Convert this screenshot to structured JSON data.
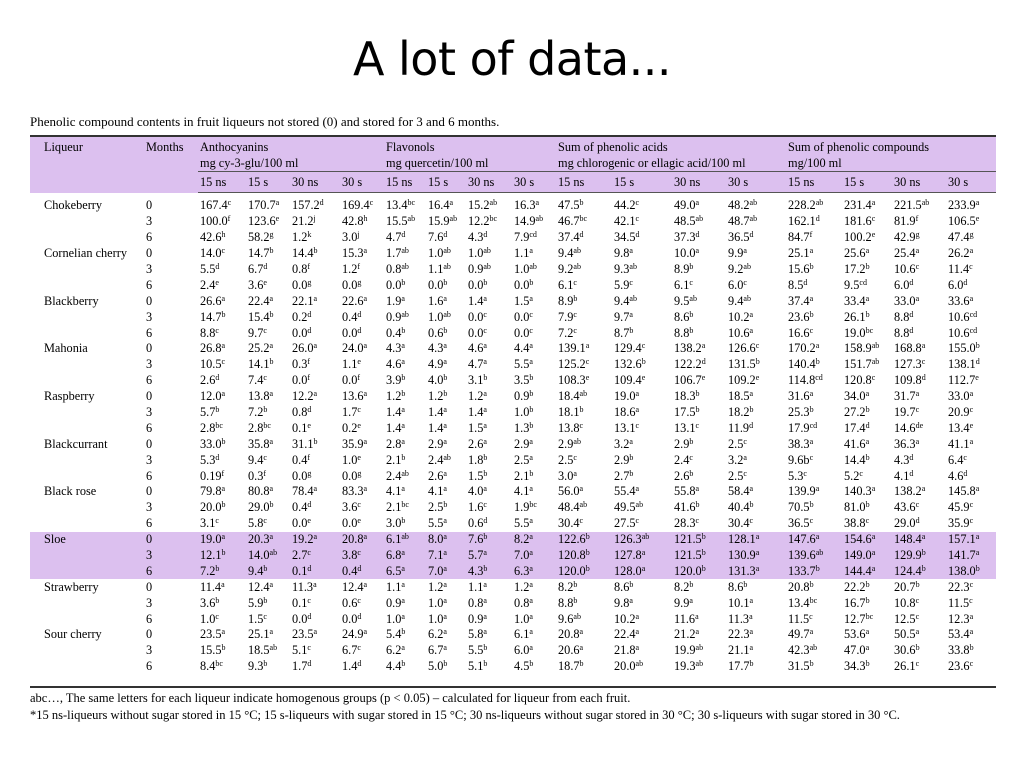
{
  "title": "A lot of data...",
  "caption": "Phenolic compound contents in fruit liqueurs not stored (0) and stored for 3 and 6 months.",
  "headers": {
    "liqueur": "Liqueur",
    "months": "Months",
    "anthocyanins": "Anthocyanins",
    "anthocyanins_unit": "mg cy-3-glu/100 ml",
    "flavonols": "Flavonols",
    "flavonols_unit": "mg quercetin/100 ml",
    "acids": "Sum of phenolic acids",
    "acids_unit": "mg chlorogenic or ellagic acid/100 ml",
    "compounds": "Sum of phenolic compounds",
    "compounds_unit": "mg/100 ml",
    "sub": [
      "15 ns",
      "15 s",
      "30 ns",
      "30 s"
    ]
  },
  "rows": [
    {
      "liqueur": "Chokeberry",
      "highlight": false,
      "data": [
        [
          "0",
          [
            "167.4|c",
            "170.7|a",
            "157.2|d",
            "169.4|c"
          ],
          [
            "13.4|bc",
            "16.4|a",
            "15.2|ab",
            "16.3|a"
          ],
          [
            "47.5|b",
            "44.2|c",
            "49.0|a",
            "48.2|ab"
          ],
          [
            "228.2|ab",
            "231.4|a",
            "221.5|ab",
            "233.9|a"
          ]
        ],
        [
          "3",
          [
            "100.0|f",
            "123.6|e",
            "21.2|j",
            "42.8|h"
          ],
          [
            "15.5|ab",
            "15.9|ab",
            "12.2|bc",
            "14.9|ab"
          ],
          [
            "46.7|bc",
            "42.1|c",
            "48.5|ab",
            "48.7|ab"
          ],
          [
            "162.1|d",
            "181.6|c",
            "81.9|f",
            "106.5|e"
          ]
        ],
        [
          "6",
          [
            "42.6|h",
            "58.2|g",
            "1.2|k",
            "3.0|j"
          ],
          [
            "4.7|d",
            "7.6|d",
            "4.3|d",
            "7.9|cd"
          ],
          [
            "37.4|d",
            "34.5|d",
            "37.3|d",
            "36.5|d"
          ],
          [
            "84.7|f",
            "100.2|e",
            "42.9|g",
            "47.4|g"
          ]
        ]
      ]
    },
    {
      "liqueur": "Cornelian cherry",
      "highlight": false,
      "data": [
        [
          "0",
          [
            "14.0|c",
            "14.7|b",
            "14.4|b",
            "15.3|a"
          ],
          [
            "1.7|ab",
            "1.0|ab",
            "1.0|ab",
            "1.1|a"
          ],
          [
            "9.4|ab",
            "9.8|a",
            "10.0|a",
            "9.9|a"
          ],
          [
            "25.1|a",
            "25.6|a",
            "25.4|a",
            "26.2|a"
          ]
        ],
        [
          "3",
          [
            "5.5|d",
            "6.7|d",
            "0.8|f",
            "1.2|f"
          ],
          [
            "0.8|ab",
            "1.1|ab",
            "0.9|ab",
            "1.0|ab"
          ],
          [
            "9.2|ab",
            "9.3|ab",
            "8.9|b",
            "9.2|ab"
          ],
          [
            "15.6|b",
            "17.2|b",
            "10.6|c",
            "11.4|c"
          ]
        ],
        [
          "6",
          [
            "2.4|e",
            "3.6|e",
            "0.0|g",
            "0.0|g"
          ],
          [
            "0.0|b",
            "0.0|b",
            "0.0|b",
            "0.0|b"
          ],
          [
            "6.1|c",
            "5.9|c",
            "6.1|c",
            "6.0|c"
          ],
          [
            "8.5|d",
            "9.5|cd",
            "6.0|d",
            "6.0|d"
          ]
        ]
      ]
    },
    {
      "liqueur": "Blackberry",
      "highlight": false,
      "data": [
        [
          "0",
          [
            "26.6|a",
            "22.4|a",
            "22.1|a",
            "22.6|a"
          ],
          [
            "1.9|a",
            "1.6|a",
            "1.4|a",
            "1.5|a"
          ],
          [
            "8.9|b",
            "9.4|ab",
            "9.5|ab",
            "9.4|ab"
          ],
          [
            "37.4|a",
            "33.4|a",
            "33.0|a",
            "33.6|a"
          ]
        ],
        [
          "3",
          [
            "14.7|b",
            "15.4|b",
            "0.2|d",
            "0.4|d"
          ],
          [
            "0.9|ab",
            "1.0|ab",
            "0.0|c",
            "0.0|c"
          ],
          [
            "7.9|c",
            "9.7|a",
            "8.6|b",
            "10.2|a"
          ],
          [
            "23.6|b",
            "26.1|b",
            "8.8|d",
            "10.6|cd"
          ]
        ],
        [
          "6",
          [
            "8.8|c",
            "9.7|c",
            "0.0|d",
            "0.0|d"
          ],
          [
            "0.4|b",
            "0.6|b",
            "0.0|c",
            "0.0|c"
          ],
          [
            "7.2|c",
            "8.7|b",
            "8.8|b",
            "10.6|a"
          ],
          [
            "16.6|c",
            "19.0|bc",
            "8.8|d",
            "10.6|cd"
          ]
        ]
      ]
    },
    {
      "liqueur": "Mahonia",
      "highlight": false,
      "data": [
        [
          "0",
          [
            "26.8|a",
            "25.2|a",
            "26.0|a",
            "24.0|a"
          ],
          [
            "4.3|a",
            "4.3|a",
            "4.6|a",
            "4.4|a"
          ],
          [
            "139.1|a",
            "129.4|c",
            "138.2|a",
            "126.6|c"
          ],
          [
            "170.2|a",
            "158.9|ab",
            "168.8|a",
            "155.0|b"
          ]
        ],
        [
          "3",
          [
            "10.5|c",
            "14.1|b",
            "0.3|f",
            "1.1|e"
          ],
          [
            "4.6|a",
            "4.9|a",
            "4.7|a",
            "5.5|a"
          ],
          [
            "125.2|c",
            "132.6|b",
            "122.2|d",
            "131.5|b"
          ],
          [
            "140.4|b",
            "151.7|ab",
            "127.3|c",
            "138.1|d"
          ]
        ],
        [
          "6",
          [
            "2.6|d",
            "7.4|c",
            "0.0|f",
            "0.0|f"
          ],
          [
            "3.9|b",
            "4.0|b",
            "3.1|b",
            "3.5|b"
          ],
          [
            "108.3|e",
            "109.4|e",
            "106.7|e",
            "109.2|e"
          ],
          [
            "114.8|cd",
            "120.8|c",
            "109.8|d",
            "112.7|e"
          ]
        ]
      ]
    },
    {
      "liqueur": "Raspberry",
      "highlight": false,
      "data": [
        [
          "0",
          [
            "12.0|a",
            "13.8|a",
            "12.2|a",
            "13.6|a"
          ],
          [
            "1.2|b",
            "1.2|b",
            "1.2|a",
            "0.9|b"
          ],
          [
            "18.4|ab",
            "19.0|a",
            "18.3|b",
            "18.5|a"
          ],
          [
            "31.6|a",
            "34.0|a",
            "31.7|a",
            "33.0|a"
          ]
        ],
        [
          "3",
          [
            "5.7|b",
            "7.2|b",
            "0.8|d",
            "1.7|c"
          ],
          [
            "1.4|a",
            "1.4|a",
            "1.4|a",
            "1.0|b"
          ],
          [
            "18.1|b",
            "18.6|a",
            "17.5|b",
            "18.2|b"
          ],
          [
            "25.3|b",
            "27.2|b",
            "19.7|c",
            "20.9|c"
          ]
        ],
        [
          "6",
          [
            "2.8|bc",
            "2.8|bc",
            "0.1|e",
            "0.2|e"
          ],
          [
            "1.4|a",
            "1.4|a",
            "1.5|a",
            "1.3|b"
          ],
          [
            "13.8|c",
            "13.1|c",
            "13.1|c",
            "11.9|d"
          ],
          [
            "17.9|cd",
            "17.4|d",
            "14.6|de",
            "13.4|e"
          ]
        ]
      ]
    },
    {
      "liqueur": "Blackcurrant",
      "highlight": false,
      "data": [
        [
          "0",
          [
            "33.0|b",
            "35.8|a",
            "31.1|b",
            "35.9|a"
          ],
          [
            "2.8|a",
            "2.9|a",
            "2.6|a",
            "2.9|a"
          ],
          [
            "2.9|ab",
            "3.2|a",
            "2.9|b",
            "2.5|c"
          ],
          [
            "38.3|a",
            "41.6|a",
            "36.3|a",
            "41.1|a"
          ]
        ],
        [
          "3",
          [
            "5.3|d",
            "9.4|c",
            "0.4|f",
            "1.0|e"
          ],
          [
            "2.1|b",
            "2.4|ab",
            "1.8|b",
            "2.5|a"
          ],
          [
            "2.5|c",
            "2.9|b",
            "2.4|c",
            "3.2|a"
          ],
          [
            "9.6b|c",
            "14.4|b",
            "4.3|d",
            "6.4|c"
          ]
        ],
        [
          "6",
          [
            "0.19|f",
            "0.3|f",
            "0.0|g",
            "0.0|g"
          ],
          [
            "2.4|ab",
            "2.6|a",
            "1.5|b",
            "2.1|b"
          ],
          [
            "3.0|a",
            "2.7|b",
            "2.6|b",
            "2.5|c"
          ],
          [
            "5.3|c",
            "5.2|c",
            "4.1|d",
            "4.6|d"
          ]
        ]
      ]
    },
    {
      "liqueur": "Black rose",
      "highlight": false,
      "data": [
        [
          "0",
          [
            "79.8|a",
            "80.8|a",
            "78.4|a",
            "83.3|a"
          ],
          [
            "4.1|a",
            "4.1|a",
            "4.0|a",
            "4.1|a"
          ],
          [
            "56.0|a",
            "55.4|a",
            "55.8|a",
            "58.4|a"
          ],
          [
            "139.9|a",
            "140.3|a",
            "138.2|a",
            "145.8|a"
          ]
        ],
        [
          "3",
          [
            "20.0|b",
            "29.0|b",
            "0.4|d",
            "3.6|c"
          ],
          [
            "2.1|bc",
            "2.5|b",
            "1.6|c",
            "1.9|bc"
          ],
          [
            "48.4|ab",
            "49.5|ab",
            "41.6|b",
            "40.4|b"
          ],
          [
            "70.5|b",
            "81.0|b",
            "43.6|c",
            "45.9|c"
          ]
        ],
        [
          "6",
          [
            "3.1|c",
            "5.8|c",
            "0.0|e",
            "0.0|e"
          ],
          [
            "3.0|b",
            "5.5|a",
            "0.6|d",
            "5.5|a"
          ],
          [
            "30.4|c",
            "27.5|c",
            "28.3|c",
            "30.4|c"
          ],
          [
            "36.5|c",
            "38.8|c",
            "29.0|d",
            "35.9|c"
          ]
        ]
      ]
    },
    {
      "liqueur": "Sloe",
      "highlight": true,
      "data": [
        [
          "0",
          [
            "19.0|a",
            "20.3|a",
            "19.2|a",
            "20.8|a"
          ],
          [
            "6.1|ab",
            "8.0|a",
            "7.6|b",
            "8.2|a"
          ],
          [
            "122.6|b",
            "126.3|ab",
            "121.5|b",
            "128.1|a"
          ],
          [
            "147.6|a",
            "154.6|a",
            "148.4|a",
            "157.1|a"
          ]
        ],
        [
          "3",
          [
            "12.1|b",
            "14.0|ab",
            "2.7|c",
            "3.8|c"
          ],
          [
            "6.8|a",
            "7.1|a",
            "5.7|a",
            "7.0|a"
          ],
          [
            "120.8|b",
            "127.8|a",
            "121.5|b",
            "130.9|a"
          ],
          [
            "139.6|ab",
            "149.0|a",
            "129.9|b",
            "141.7|a"
          ]
        ],
        [
          "6",
          [
            "7.2|b",
            "9.4|b",
            "0.1|d",
            "0.4|d"
          ],
          [
            "6.5|a",
            "7.0|a",
            "4.3|b",
            "6.3|a"
          ],
          [
            "120.0|b",
            "128.0|a",
            "120.0|b",
            "131.3|a"
          ],
          [
            "133.7|b",
            "144.4|a",
            "124.4|b",
            "138.0|b"
          ]
        ]
      ]
    },
    {
      "liqueur": "Strawberry",
      "highlight": false,
      "data": [
        [
          "0",
          [
            "11.4|a",
            "12.4|a",
            "11.3|a",
            "12.4|a"
          ],
          [
            "1.1|a",
            "1.2|a",
            "1.1|a",
            "1.2|a"
          ],
          [
            "8.2|b",
            "8.6|b",
            "8.2|b",
            "8.6|b"
          ],
          [
            "20.8|b",
            "22.2|b",
            "20.7|b",
            "22.3|c"
          ]
        ],
        [
          "3",
          [
            "3.6|b",
            "5.9|b",
            "0.1|c",
            "0.6|c"
          ],
          [
            "0.9|a",
            "1.0|a",
            "0.8|a",
            "0.8|a"
          ],
          [
            "8.8|b",
            "9.8|a",
            "9.9|a",
            "10.1|a"
          ],
          [
            "13.4|bc",
            "16.7|b",
            "10.8|c",
            "11.5|c"
          ]
        ],
        [
          "6",
          [
            "1.0|c",
            "1.5|c",
            "0.0|d",
            "0.0|d"
          ],
          [
            "1.0|a",
            "1.0|a",
            "0.9|a",
            "1.0|a"
          ],
          [
            "9.6|ab",
            "10.2|a",
            "11.6|a",
            "11.3|a"
          ],
          [
            "11.5|c",
            "12.7|bc",
            "12.5|c",
            "12.3|a"
          ]
        ]
      ]
    },
    {
      "liqueur": "Sour cherry",
      "highlight": false,
      "data": [
        [
          "0",
          [
            "23.5|a",
            "25.1|a",
            "23.5|a",
            "24.9|a"
          ],
          [
            "5.4|b",
            "6.2|a",
            "5.8|a",
            "6.1|a"
          ],
          [
            "20.8|a",
            "22.4|a",
            "21.2|a",
            "22.3|a"
          ],
          [
            "49.7|a",
            "53.6|a",
            "50.5|a",
            "53.4|a"
          ]
        ],
        [
          "3",
          [
            "15.5|b",
            "18.5|ab",
            "5.1|c",
            "6.7|c"
          ],
          [
            "6.2|a",
            "6.7|a",
            "5.5|b",
            "6.0|a"
          ],
          [
            "20.6|a",
            "21.8|a",
            "19.9|ab",
            "21.1|a"
          ],
          [
            "42.3|ab",
            "47.0|a",
            "30.6|b",
            "33.8|b"
          ]
        ],
        [
          "6",
          [
            "8.4|bc",
            "9.3|b",
            "1.7|d",
            "1.4|d"
          ],
          [
            "4.4|b",
            "5.0|b",
            "5.1|b",
            "4.5|b"
          ],
          [
            "18.7|b",
            "20.0|ab",
            "19.3|ab",
            "17.7|b"
          ],
          [
            "31.5|b",
            "34.3|b",
            "26.1|c",
            "23.6|c"
          ]
        ]
      ]
    }
  ],
  "footnotes": [
    "abc…, The same letters for each liqueur indicate homogenous groups (p < 0.05) – calculated for liqueur from each fruit.",
    "*15 ns-liqueurs without sugar stored in 15 °C; 15 s-liqueurs with sugar stored in 15 °C; 30 ns-liqueurs without sugar stored in 30 °C; 30 s-liqueurs with sugar stored in 30 °C."
  ]
}
